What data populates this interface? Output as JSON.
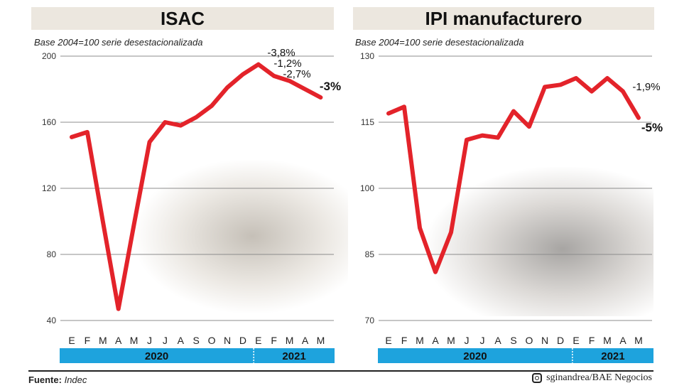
{
  "footer": {
    "source_label": "Fuente:",
    "source_value": "Indec",
    "credit_icon": "instagram-icon",
    "credit_text": "sginandrea/BAE Negocios"
  },
  "colors": {
    "line": "#e3232a",
    "grid": "#8c8c8c",
    "year_bar": "#1ea3dd",
    "title_bg": "#ece7df"
  },
  "chart_data": [
    {
      "type": "line",
      "title": "ISAC",
      "subtitle": "Base 2004=100 serie desestacionalizada",
      "categories": [
        "E",
        "F",
        "M",
        "A",
        "M",
        "J",
        "J",
        "A",
        "S",
        "O",
        "N",
        "D",
        "E",
        "F",
        "M",
        "A",
        "M"
      ],
      "years": [
        {
          "label": "2020",
          "months": 12
        },
        {
          "label": "2021",
          "months": 5
        }
      ],
      "series": [
        {
          "values": [
            151,
            154,
            100,
            47,
            98,
            148,
            160,
            158,
            163,
            170,
            181,
            189,
            195,
            188,
            185,
            180,
            175
          ]
        }
      ],
      "ylim": [
        40,
        200
      ],
      "yticks": [
        40,
        80,
        120,
        160,
        200
      ],
      "grid": true,
      "annotations": [
        {
          "text": "-3,8%",
          "bold": false
        },
        {
          "text": "-1,2%",
          "bold": false
        },
        {
          "text": "-2,7%",
          "bold": false
        },
        {
          "text": "-3%",
          "bold": true
        }
      ]
    },
    {
      "type": "line",
      "title": "IPI manufacturero",
      "subtitle": "Base 2004=100 serie desestacionalizada",
      "categories": [
        "E",
        "F",
        "M",
        "A",
        "M",
        "J",
        "J",
        "A",
        "S",
        "O",
        "N",
        "D",
        "E",
        "F",
        "M",
        "A",
        "M"
      ],
      "years": [
        {
          "label": "2020",
          "months": 12
        },
        {
          "label": "2021",
          "months": 5
        }
      ],
      "series": [
        {
          "values": [
            117,
            118.5,
            91,
            81,
            90,
            111,
            112,
            111.5,
            117.5,
            114,
            123,
            123.5,
            125,
            122,
            125,
            122,
            116
          ]
        }
      ],
      "ylim": [
        70,
        130
      ],
      "yticks": [
        70,
        85,
        100,
        115,
        130
      ],
      "grid": true,
      "annotations": [
        {
          "text": "-1,9%",
          "bold": false
        },
        {
          "text": "-5%",
          "bold": true
        }
      ]
    }
  ]
}
